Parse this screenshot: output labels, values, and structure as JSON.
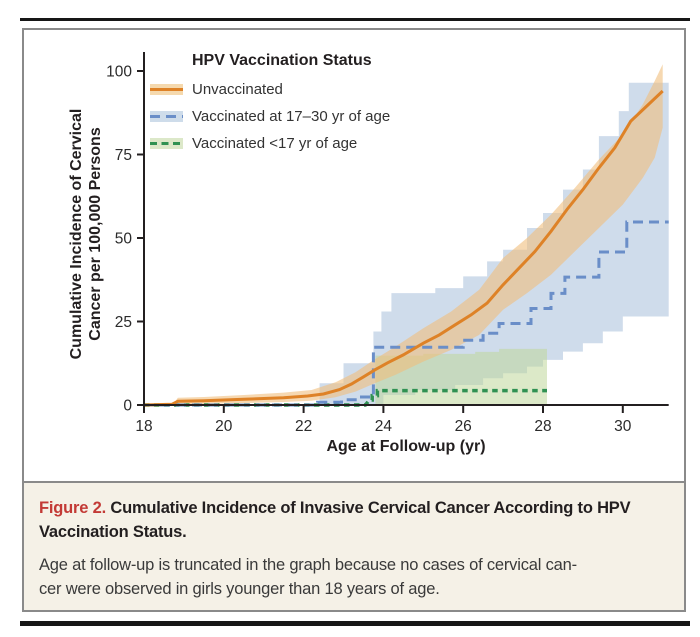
{
  "rules": {
    "top": true,
    "bottom": true
  },
  "colors": {
    "accent_red": "#c33a36",
    "rule_black": "#161616",
    "box_border": "#8a8a8a",
    "caption_bg": "#f5f1e7",
    "axis": "#231f20",
    "tick_text": "#2b2b2b",
    "orange_line": "#de8227",
    "orange_band": "#f0be7d",
    "blue_line": "#6a8ec8",
    "blue_band": "#9fbad8",
    "green_line": "#2f9152",
    "green_band": "#bfd79b"
  },
  "caption": {
    "label": "Figure 2.",
    "title_line1": "Cumulative Incidence of Invasive Cervical Cancer According to HPV",
    "title_line2": "Vaccination Status.",
    "body_line1": "Age at follow-up is truncated in the graph because no cases of cervical can-",
    "body_line2": "cer were observed in girls younger than 18 years of age."
  },
  "chart_data": {
    "type": "line",
    "subtype": "cumulative-incidence-step-curves-with-confidence-bands",
    "xlabel": "Age at Follow-up (yr)",
    "ylabel_line1": "Cumulative Incidence of Cervical",
    "ylabel_line2": "Cancer per 100,000 Persons",
    "xlim": [
      18,
      31.2
    ],
    "ylim": [
      0,
      106
    ],
    "x_ticks": [
      18,
      20,
      22,
      24,
      26,
      28,
      30
    ],
    "y_ticks": [
      0,
      25,
      50,
      75,
      100
    ],
    "grid": false,
    "legend": {
      "title": "HPV Vaccination Status",
      "position": "top-left-inside",
      "entries": [
        {
          "label": "Unvaccinated",
          "line_color": "#de8227",
          "band_color": "#f5d9ae",
          "dash": "solid"
        },
        {
          "label": "Vaccinated at 17–30 yr of age",
          "line_color": "#6a8ec8",
          "band_color": "#cedcea",
          "dash": "long-dash"
        },
        {
          "label": "Vaccinated <17 yr of age",
          "line_color": "#2f9152",
          "band_color": "#dce8c9",
          "dash": "short-dash"
        }
      ]
    },
    "series": [
      {
        "name": "Unvaccinated",
        "line_color": "#de8227",
        "line_width": 3,
        "dash": "none",
        "band_fill": "#f0be7d",
        "band_opacity": 0.6,
        "points": [
          [
            18,
            0
          ],
          [
            18.7,
            0.2
          ],
          [
            18.85,
            1.1
          ],
          [
            19.5,
            1.3
          ],
          [
            20.5,
            1.7
          ],
          [
            21.5,
            2.2
          ],
          [
            22.1,
            2.7
          ],
          [
            22.5,
            3.3
          ],
          [
            22.9,
            4.6
          ],
          [
            23.2,
            6.3
          ],
          [
            23.5,
            8.4
          ],
          [
            23.8,
            10.6
          ],
          [
            24.1,
            12.6
          ],
          [
            24.5,
            15
          ],
          [
            25,
            18.5
          ],
          [
            25.4,
            21
          ],
          [
            25.8,
            24
          ],
          [
            26.2,
            27
          ],
          [
            26.6,
            30.5
          ],
          [
            27,
            36
          ],
          [
            27.4,
            41
          ],
          [
            27.8,
            46
          ],
          [
            28.2,
            52
          ],
          [
            28.6,
            58.5
          ],
          [
            29,
            64.5
          ],
          [
            29.4,
            71
          ],
          [
            29.8,
            77
          ],
          [
            30.2,
            85
          ],
          [
            30.6,
            89.5
          ],
          [
            31,
            94
          ]
        ],
        "band_upper": [
          [
            18,
            0.4
          ],
          [
            18.75,
            0.6
          ],
          [
            18.85,
            2.2
          ],
          [
            19.5,
            2.4
          ],
          [
            20.5,
            3
          ],
          [
            21.5,
            3.7
          ],
          [
            22.2,
            4.5
          ],
          [
            22.8,
            6.8
          ],
          [
            23.3,
            9.8
          ],
          [
            23.8,
            13.8
          ],
          [
            24.3,
            17.5
          ],
          [
            25,
            23
          ],
          [
            25.7,
            28
          ],
          [
            26.4,
            34.5
          ],
          [
            27,
            44
          ],
          [
            27.6,
            50
          ],
          [
            28.2,
            57
          ],
          [
            28.8,
            65
          ],
          [
            29.4,
            73.5
          ],
          [
            30,
            81
          ],
          [
            30.5,
            90
          ],
          [
            30.8,
            97
          ],
          [
            31,
            102
          ]
        ],
        "band_lower": [
          [
            18,
            0
          ],
          [
            19.4,
            0
          ],
          [
            19.5,
            0.3
          ],
          [
            20.5,
            0.6
          ],
          [
            21.5,
            0.9
          ],
          [
            22.2,
            1.3
          ],
          [
            22.8,
            2.3
          ],
          [
            23.3,
            4
          ],
          [
            23.8,
            6.6
          ],
          [
            24.3,
            9
          ],
          [
            25,
            13
          ],
          [
            25.7,
            16.5
          ],
          [
            26.4,
            21
          ],
          [
            27,
            28.5
          ],
          [
            27.6,
            33.5
          ],
          [
            28.2,
            39
          ],
          [
            28.8,
            46
          ],
          [
            29.4,
            53
          ],
          [
            30,
            60
          ],
          [
            30.5,
            68
          ],
          [
            30.8,
            74
          ],
          [
            31,
            83
          ]
        ]
      },
      {
        "name": "Vaccinated at 17–30 yr of age",
        "line_color": "#6a8ec8",
        "line_width": 3,
        "dash": "10 6",
        "band_fill": "#9fbad8",
        "band_opacity": 0.5,
        "points": [
          [
            18,
            0
          ],
          [
            22.35,
            0
          ],
          [
            22.35,
            0.8
          ],
          [
            22.95,
            0.8
          ],
          [
            22.95,
            1.6
          ],
          [
            23.35,
            1.6
          ],
          [
            23.35,
            2.4
          ],
          [
            23.75,
            2.4
          ],
          [
            23.75,
            17.3
          ],
          [
            26,
            17.3
          ],
          [
            26,
            19.4
          ],
          [
            26.5,
            19.4
          ],
          [
            26.5,
            21.5
          ],
          [
            26.9,
            21.5
          ],
          [
            26.9,
            24.4
          ],
          [
            27.7,
            24.4
          ],
          [
            27.7,
            28.9
          ],
          [
            28.2,
            28.9
          ],
          [
            28.2,
            33.4
          ],
          [
            28.55,
            33.4
          ],
          [
            28.55,
            38.3
          ],
          [
            29.4,
            38.3
          ],
          [
            29.4,
            45.8
          ],
          [
            30.1,
            45.8
          ],
          [
            30.1,
            54.8
          ],
          [
            31.15,
            54.8
          ]
        ],
        "band_upper": [
          [
            22.4,
            6.5
          ],
          [
            23,
            6.5
          ],
          [
            23,
            12.5
          ],
          [
            23.75,
            12.5
          ],
          [
            23.75,
            22
          ],
          [
            23.95,
            22
          ],
          [
            23.95,
            28
          ],
          [
            24.2,
            28
          ],
          [
            24.2,
            33.5
          ],
          [
            25.3,
            33.5
          ],
          [
            25.3,
            35
          ],
          [
            26,
            35
          ],
          [
            26,
            38.5
          ],
          [
            26.6,
            38.5
          ],
          [
            26.6,
            43
          ],
          [
            27,
            43
          ],
          [
            27,
            46.5
          ],
          [
            27.6,
            46.5
          ],
          [
            27.6,
            53
          ],
          [
            28,
            53
          ],
          [
            28,
            57.5
          ],
          [
            28.5,
            57.5
          ],
          [
            28.5,
            64.5
          ],
          [
            29,
            64.5
          ],
          [
            29,
            70.5
          ],
          [
            29.4,
            70.5
          ],
          [
            29.4,
            80.5
          ],
          [
            29.9,
            80.5
          ],
          [
            29.9,
            88
          ],
          [
            30.15,
            88
          ],
          [
            30.15,
            96.5
          ],
          [
            31.15,
            96.5
          ]
        ],
        "band_lower": [
          [
            22.4,
            0
          ],
          [
            24,
            0
          ],
          [
            24,
            3
          ],
          [
            24.8,
            3
          ],
          [
            24.8,
            4.5
          ],
          [
            25.8,
            4.5
          ],
          [
            25.8,
            6
          ],
          [
            26.5,
            6
          ],
          [
            26.5,
            8
          ],
          [
            27,
            8
          ],
          [
            27,
            9.5
          ],
          [
            27.6,
            9.5
          ],
          [
            27.6,
            11.5
          ],
          [
            28,
            11.5
          ],
          [
            28,
            13.5
          ],
          [
            28.5,
            13.5
          ],
          [
            28.5,
            16
          ],
          [
            29,
            16
          ],
          [
            29,
            18.5
          ],
          [
            29.5,
            18.5
          ],
          [
            29.5,
            22
          ],
          [
            30,
            22
          ],
          [
            30,
            26.5
          ],
          [
            31.15,
            26.5
          ]
        ]
      },
      {
        "name": "Vaccinated <17 yr of age",
        "line_color": "#2f9152",
        "line_width": 3.5,
        "dash": "5.5 4.5",
        "band_fill": "#bfd79b",
        "band_opacity": 0.55,
        "points": [
          [
            18,
            0
          ],
          [
            23.55,
            0
          ],
          [
            23.65,
            1.5
          ],
          [
            23.72,
            1.5
          ],
          [
            23.72,
            2.8
          ],
          [
            23.85,
            2.8
          ],
          [
            23.85,
            4.3
          ],
          [
            28.1,
            4.3
          ]
        ],
        "band_upper": [
          [
            23.8,
            14.8
          ],
          [
            25,
            14.8
          ],
          [
            25,
            15.3
          ],
          [
            26.3,
            15.3
          ],
          [
            26.3,
            15.9
          ],
          [
            26.9,
            15.9
          ],
          [
            26.9,
            16.8
          ],
          [
            28.1,
            16.8
          ]
        ],
        "band_lower": [
          [
            23.8,
            0.3
          ],
          [
            28.1,
            0.3
          ]
        ]
      }
    ]
  }
}
